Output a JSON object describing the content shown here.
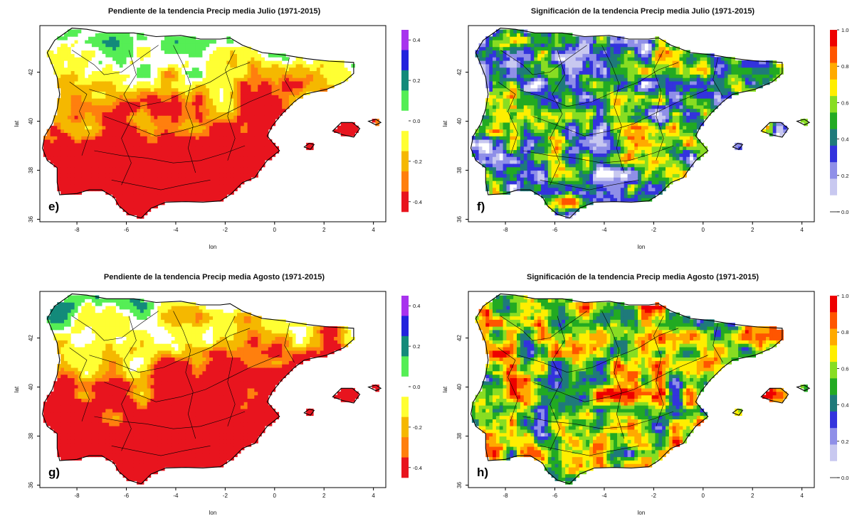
{
  "colors": {
    "slope_scale": [
      "#e8141e",
      "#ff7f0e",
      "#f5b800",
      "#ffff33",
      "#ffffff",
      "#55ee55",
      "#138a7a",
      "#2222dd",
      "#a833ee"
    ],
    "signif_scale": [
      "#ffffff",
      "#c8c8f0",
      "#8f8fe8",
      "#3333dd",
      "#1f7a7a",
      "#22aa22",
      "#88dd22",
      "#ffee00",
      "#ffaa00",
      "#ff5500",
      "#ee0000"
    ],
    "outline": "#000000"
  },
  "panels": [
    {
      "id": "e",
      "title": "Pendiente de la tendencia Precip media Julio (1971-2015)",
      "letter": "e)",
      "xlabel": "lon",
      "ylabel": "lat",
      "xticks": [
        "-8",
        "-6",
        "-4",
        "-2",
        "0",
        "2",
        "4"
      ],
      "yticks": [
        "36",
        "38",
        "40",
        "42"
      ],
      "legend_type": "slope",
      "legend_ticks": [
        "0.4",
        "0.2",
        "0.0",
        "-0.2",
        "-0.4"
      ]
    },
    {
      "id": "f",
      "title": "Significación de la tendencia Precip media Julio (1971-2015)",
      "letter": "f)",
      "xlabel": "lon",
      "ylabel": "lat",
      "xticks": [
        "-8",
        "-6",
        "-4",
        "-2",
        "0",
        "2",
        "4"
      ],
      "yticks": [
        "36",
        "38",
        "40",
        "42"
      ],
      "legend_type": "signif",
      "legend_ticks": [
        "1.0",
        "0.8",
        "0.6",
        "0.4",
        "0.2",
        "0.0"
      ]
    },
    {
      "id": "g",
      "title": "Pendiente de la tendencia Precip media Agosto (1971-2015)",
      "letter": "g)",
      "xlabel": "lon",
      "ylabel": "lat",
      "xticks": [
        "-8",
        "-6",
        "-4",
        "-2",
        "0",
        "2",
        "4"
      ],
      "yticks": [
        "36",
        "38",
        "40",
        "42"
      ],
      "legend_type": "slope",
      "legend_ticks": [
        "0.4",
        "0.2",
        "0.0",
        "-0.2",
        "-0.4"
      ]
    },
    {
      "id": "h",
      "title": "Significación de la tendencia Precip media Agosto (1971-2015)",
      "letter": "h)",
      "xlabel": "lon",
      "ylabel": "lat",
      "xticks": [
        "-8",
        "-6",
        "-4",
        "-2",
        "0",
        "2",
        "4"
      ],
      "yticks": [
        "36",
        "38",
        "40",
        "42"
      ],
      "legend_type": "signif",
      "legend_ticks": [
        "1.0",
        "0.8",
        "0.6",
        "0.4",
        "0.2",
        "0.0"
      ]
    }
  ]
}
